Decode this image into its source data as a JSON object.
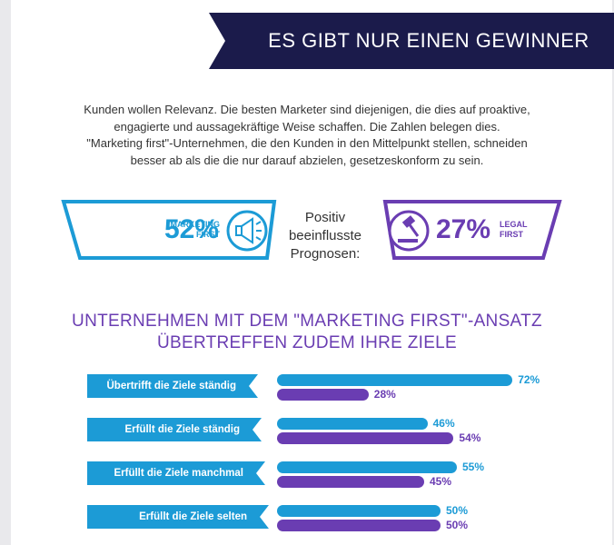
{
  "header": {
    "title": "ES GIBT NUR EINEN GEWINNER"
  },
  "intro": {
    "lines": [
      "Kunden wollen Relevanz. Die besten Marketer sind diejenigen, die dies auf proaktive,",
      "engagierte und aussagekräftige Weise schaffen. Die Zahlen belegen dies.",
      "\"Marketing first\"-Unternehmen, die den Kunden in den Mittelpunkt stellen, schneiden",
      "besser ab als die die nur darauf abzielen, gesetzeskonform zu sein."
    ]
  },
  "stats": {
    "marketing": {
      "label": "MARKETING\nFIRST",
      "value": "52%",
      "icon": "megaphone-icon"
    },
    "center_label": "Positiv\nbeeinflusste\nPrognosen:",
    "legal": {
      "label": "LEGAL\nFIRST",
      "value": "27%",
      "icon": "gavel-icon"
    }
  },
  "headline": {
    "line1": "UNTERNEHMEN MIT DEM \"MARKETING FIRST\"-ANSATZ",
    "line2": "ÜBERTREFFEN ZUDEM IHRE ZIELE"
  },
  "colors": {
    "navy": "#1b1b4b",
    "blue": "#1c9bd6",
    "purple": "#6a3db2"
  },
  "chart_data": {
    "type": "bar",
    "categories": [
      "Übertrifft die Ziele ständig",
      "Erfüllt die Ziele ständig",
      "Erfüllt die Ziele manchmal",
      "Erfüllt die Ziele selten"
    ],
    "series": [
      {
        "values": [
          72,
          46,
          55,
          50
        ],
        "labels": [
          "72%",
          "46%",
          "55%",
          "50%"
        ],
        "color": "#1c9bd6"
      },
      {
        "values": [
          28,
          54,
          45,
          50
        ],
        "labels": [
          "28%",
          "54%",
          "45%",
          "50%"
        ],
        "color": "#6a3db2"
      }
    ],
    "xlim": [
      0,
      100
    ]
  }
}
